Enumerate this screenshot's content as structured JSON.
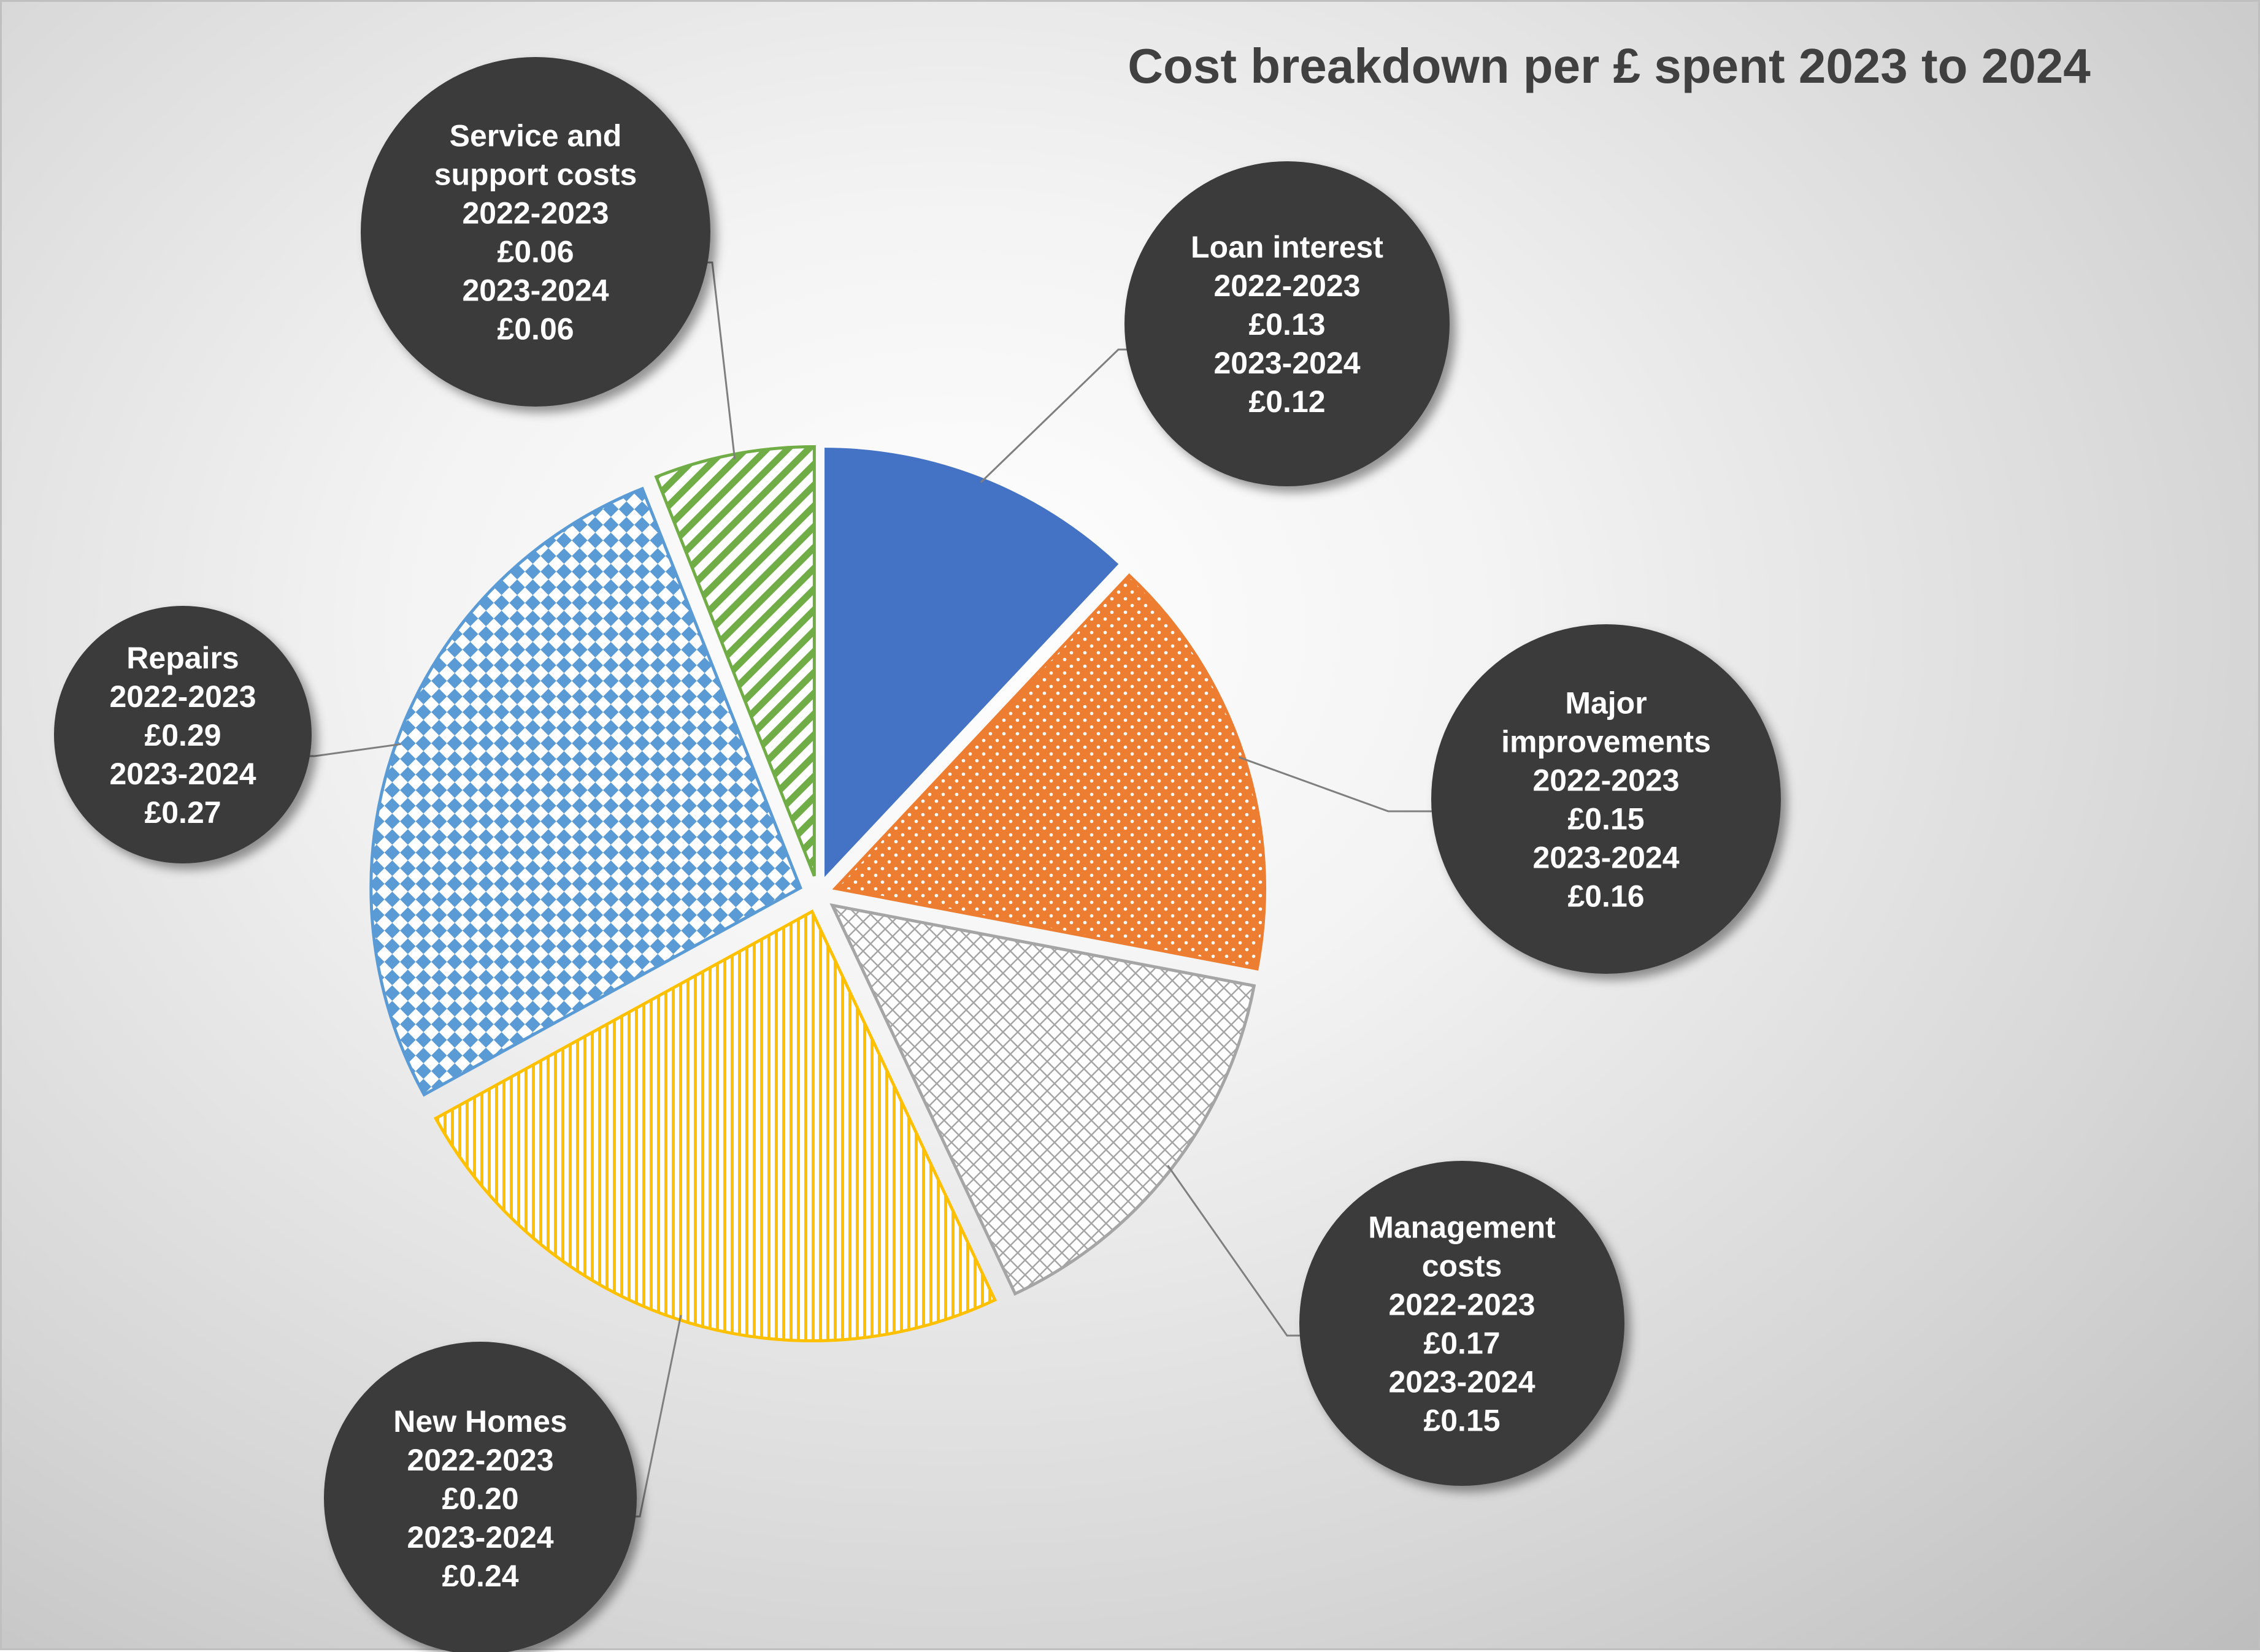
{
  "chart_data": {
    "type": "pie",
    "title": "Cost breakdown per £ spent 2023 to 2024",
    "period_labels": [
      "2022-2023",
      "2023-2024"
    ],
    "plotted_period": "2023-2024",
    "slices": [
      {
        "key": "loan",
        "label_lines": [
          "Loan interest"
        ],
        "value_2022_2023": "£0.13",
        "value_2023_2024": "£0.12",
        "value": 0.12,
        "color": "#4472c4",
        "pattern": "solid"
      },
      {
        "key": "major",
        "label_lines": [
          "Major",
          "improvements"
        ],
        "value_2022_2023": "£0.15",
        "value_2023_2024": "£0.16",
        "value": 0.16,
        "color": "#ed7d31",
        "pattern": "dots"
      },
      {
        "key": "management",
        "label_lines": [
          "Management",
          "costs"
        ],
        "value_2022_2023": "£0.17",
        "value_2023_2024": "£0.15",
        "value": 0.15,
        "color": "#a5a5a5",
        "pattern": "diagonal-cross"
      },
      {
        "key": "newhomes",
        "label_lines": [
          "New Homes"
        ],
        "value_2022_2023": "£0.20",
        "value_2023_2024": "£0.24",
        "value": 0.24,
        "color": "#ffc000",
        "pattern": "vertical"
      },
      {
        "key": "repairs",
        "label_lines": [
          "Repairs"
        ],
        "value_2022_2023": "£0.29",
        "value_2023_2024": "£0.27",
        "value": 0.27,
        "color": "#5b9bd5",
        "pattern": "checker"
      },
      {
        "key": "service",
        "label_lines": [
          "Service and",
          "support costs"
        ],
        "value_2022_2023": "£0.06",
        "value_2023_2024": "£0.06",
        "value": 0.06,
        "color": "#70ad47",
        "pattern": "diagonal"
      }
    ],
    "legend": "none",
    "grid": false
  }
}
